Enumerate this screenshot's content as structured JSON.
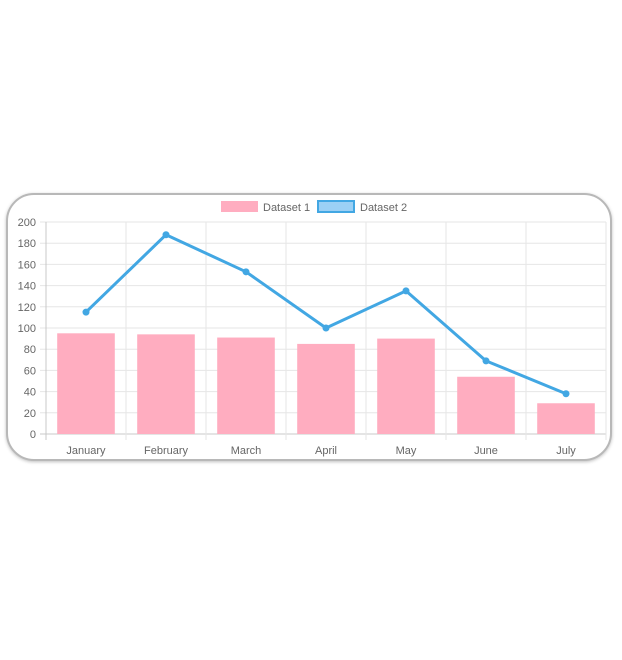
{
  "chart_data": {
    "type": "bar",
    "categories": [
      "January",
      "February",
      "March",
      "April",
      "May",
      "June",
      "July"
    ],
    "series": [
      {
        "name": "Dataset 1",
        "type": "bar",
        "values": [
          95,
          94,
          91,
          85,
          90,
          54,
          29
        ],
        "color": "#ffadc0"
      },
      {
        "name": "Dataset 2",
        "type": "line",
        "values": [
          115,
          188,
          153,
          100,
          135,
          69,
          38
        ],
        "color": "#42a7e3",
        "legend_fill": "#9bd0f5"
      }
    ],
    "ylim": [
      0,
      200
    ],
    "yticks": [
      0,
      20,
      40,
      60,
      80,
      100,
      120,
      140,
      160,
      180,
      200
    ],
    "grid": true,
    "legend": "top-center"
  }
}
